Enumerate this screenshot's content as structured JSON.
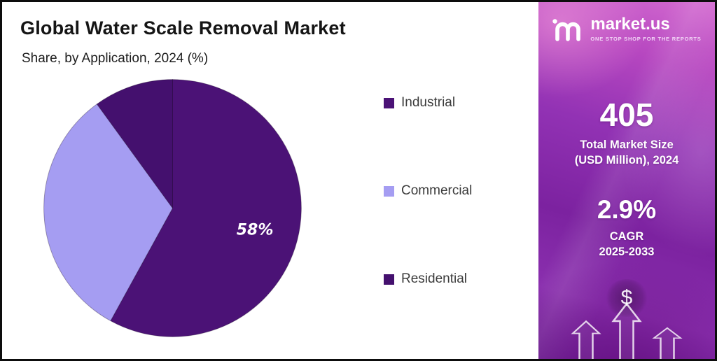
{
  "header": {
    "title": "Global Water Scale Removal Market",
    "subtitle": "Share, by Application, 2024 (%)"
  },
  "chart_data": {
    "type": "pie",
    "title": "Global Water Scale Removal Market",
    "subtitle": "Share, by Application, 2024 (%)",
    "unit": "%",
    "legend_position": "right",
    "start_angle_deg": 0,
    "direction": "clockwise",
    "slices": [
      {
        "label": "Industrial",
        "value": 58,
        "color": "#4b1276",
        "data_label": "58%"
      },
      {
        "label": "Commercial",
        "value": 32,
        "color": "#a59df2",
        "data_label": ""
      },
      {
        "label": "Residential",
        "value": 10,
        "color": "#44106e",
        "data_label": ""
      }
    ]
  },
  "panel": {
    "logo": {
      "brand": "market.us",
      "tagline": "ONE STOP SHOP FOR THE REPORTS"
    },
    "stats": [
      {
        "value": "405",
        "label": "Total Market Size\n(USD Million), 2024"
      },
      {
        "value": "2.9%",
        "label": "CAGR\n2025-2033"
      }
    ],
    "dollar_symbol": "$"
  }
}
